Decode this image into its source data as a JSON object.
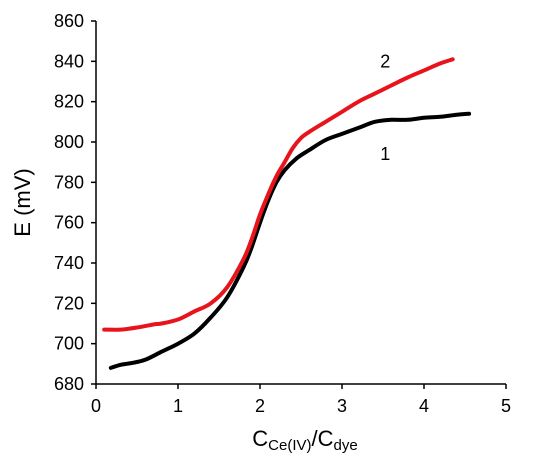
{
  "chart_data": {
    "type": "line",
    "title": "",
    "ylabel": "E (mV)",
    "xlabel": {
      "main1": "C",
      "sub1": "Ce(IV)",
      "slash": "/",
      "main2": "C",
      "sub2": "dye"
    },
    "xlim": [
      0,
      5
    ],
    "ylim": [
      680,
      860
    ],
    "x_ticks": [
      "0",
      "1",
      "2",
      "3",
      "4",
      "5"
    ],
    "y_ticks": [
      "680",
      "700",
      "720",
      "740",
      "760",
      "780",
      "800",
      "820",
      "840",
      "860"
    ],
    "grid": false,
    "series": [
      {
        "name": "1",
        "color": "#000000",
        "label_at": [
          3.6,
          794
        ],
        "x": [
          0.18,
          0.3,
          0.45,
          0.6,
          0.8,
          1.0,
          1.2,
          1.4,
          1.6,
          1.8,
          1.9,
          2.0,
          2.1,
          2.2,
          2.3,
          2.45,
          2.6,
          2.8,
          3.0,
          3.2,
          3.4,
          3.6,
          3.8,
          4.0,
          4.2,
          4.4,
          4.55
        ],
        "y": [
          688,
          689.5,
          690.5,
          692,
          696,
          700,
          705,
          713,
          723,
          738,
          748,
          760,
          771,
          780,
          786,
          792,
          796,
          801,
          804,
          807,
          810,
          811,
          811,
          812,
          812.5,
          813.5,
          814
        ]
      },
      {
        "name": "2",
        "color": "#e8141b",
        "label_at": [
          3.6,
          840
        ],
        "x": [
          0.1,
          0.3,
          0.5,
          0.7,
          0.8,
          1.0,
          1.2,
          1.4,
          1.6,
          1.8,
          1.9,
          2.0,
          2.1,
          2.2,
          2.3,
          2.4,
          2.5,
          2.6,
          2.8,
          3.0,
          3.2,
          3.4,
          3.6,
          3.8,
          4.0,
          4.2,
          4.35
        ],
        "y": [
          707,
          707,
          708,
          709.5,
          710,
          712,
          716,
          720,
          728,
          742,
          752,
          764,
          774,
          783,
          790,
          797,
          802,
          805,
          810,
          815,
          820,
          824,
          828,
          832,
          835.5,
          839,
          841
        ]
      }
    ]
  }
}
